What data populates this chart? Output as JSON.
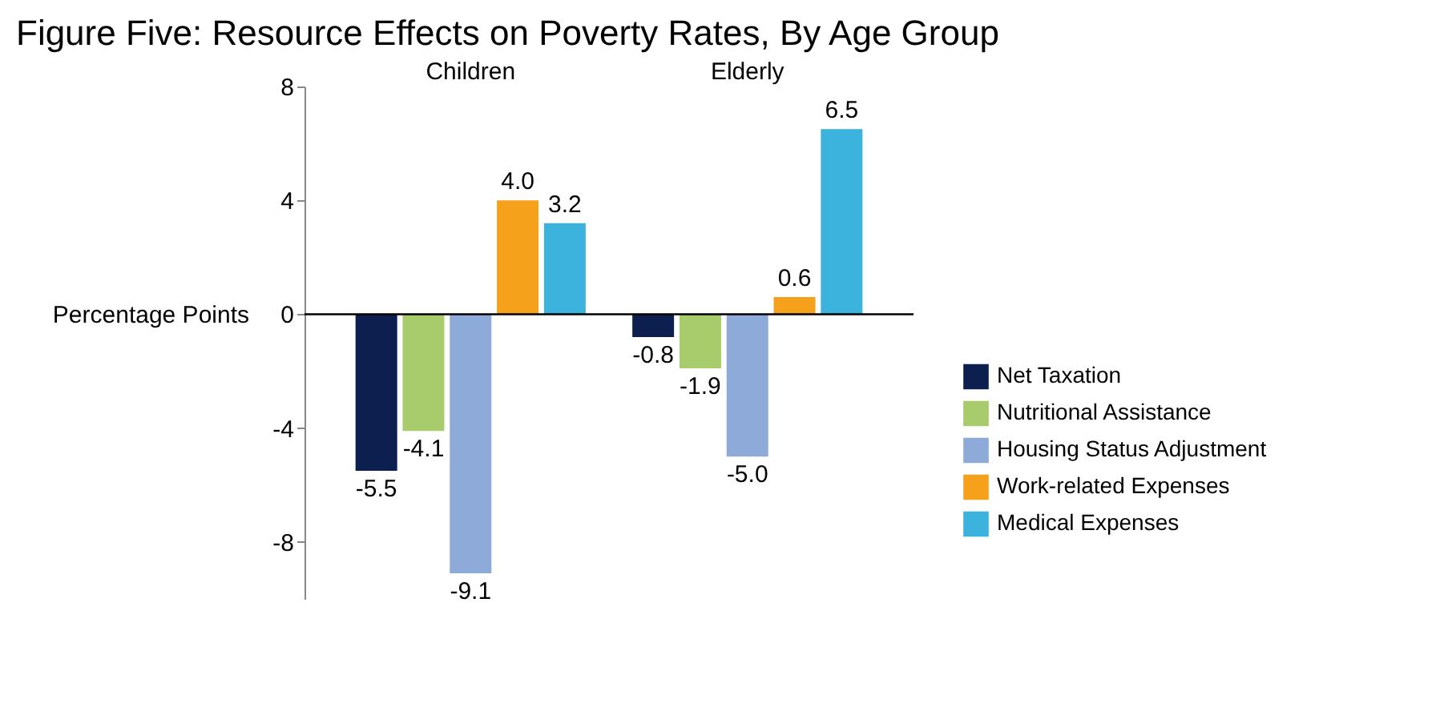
{
  "chart_data": {
    "type": "bar",
    "title": "Figure Five: Resource Effects on Poverty Rates, By Age Group",
    "ylabel": "Percentage Points",
    "categories": [
      "Children",
      "Elderly"
    ],
    "series": [
      {
        "name": "Net Taxation",
        "color": "#0d1f4f",
        "values": [
          -5.5,
          -0.8
        ],
        "value_labels": [
          "-5.5",
          "-0.8"
        ]
      },
      {
        "name": "Nutritional Assistance",
        "color": "#a8cc6b",
        "values": [
          -4.1,
          -1.9
        ],
        "value_labels": [
          "-4.1",
          "-1.9"
        ]
      },
      {
        "name": "Housing Status Adjustment",
        "color": "#8eaad8",
        "values": [
          -9.1,
          -5.0
        ],
        "value_labels": [
          "-9.1",
          "-5.0"
        ]
      },
      {
        "name": "Work-related Expenses",
        "color": "#f5a11c",
        "values": [
          4.0,
          0.6
        ],
        "value_labels": [
          "4.0",
          "0.6"
        ]
      },
      {
        "name": "Medical Expenses",
        "color": "#3bb3dd",
        "values": [
          3.2,
          6.5
        ],
        "value_labels": [
          "3.2",
          "6.5"
        ]
      }
    ],
    "ylim": [
      -10,
      8
    ],
    "yticks": [
      -8,
      -4,
      0,
      4,
      8
    ],
    "grid": false,
    "legend": "bottom right",
    "ref_lines": [
      {
        "axis": "y",
        "value": 0
      }
    ]
  }
}
